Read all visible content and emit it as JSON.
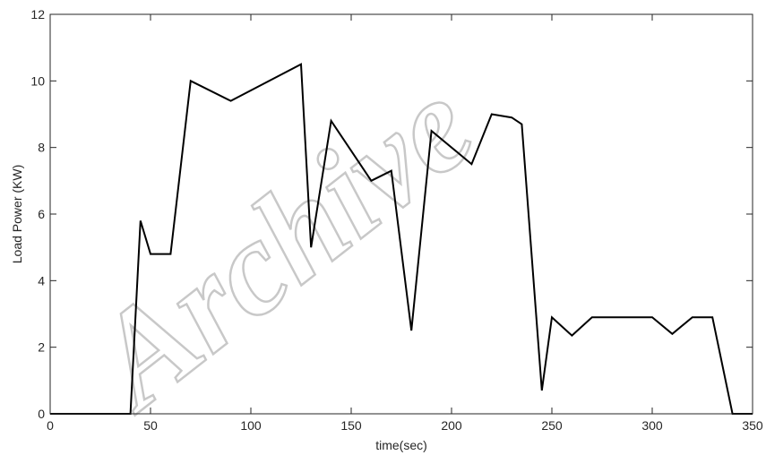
{
  "watermark": "Archive",
  "chart_data": {
    "type": "line",
    "title": "",
    "xlabel": "time(sec)",
    "ylabel": "Load Power (KW)",
    "xlim": [
      0,
      350
    ],
    "ylim": [
      0,
      12
    ],
    "xticks": [
      0,
      50,
      100,
      150,
      200,
      250,
      300,
      350
    ],
    "yticks": [
      0,
      2,
      4,
      6,
      8,
      10,
      12
    ],
    "grid": false,
    "line_color": "#000000",
    "series": [
      {
        "x": [
          0,
          40,
          45,
          50,
          60,
          70,
          90,
          125,
          130,
          140,
          160,
          170,
          180,
          190,
          210,
          220,
          230,
          235,
          245,
          250,
          260,
          270,
          300,
          310,
          320,
          330,
          340,
          350
        ],
        "y": [
          0,
          0,
          5.8,
          4.8,
          4.8,
          10,
          9.4,
          10.5,
          5.0,
          8.8,
          7.0,
          7.3,
          2.5,
          8.5,
          7.5,
          9.0,
          8.9,
          8.7,
          0.7,
          2.9,
          2.35,
          2.9,
          2.9,
          2.4,
          2.9,
          2.9,
          0,
          0
        ]
      }
    ]
  }
}
